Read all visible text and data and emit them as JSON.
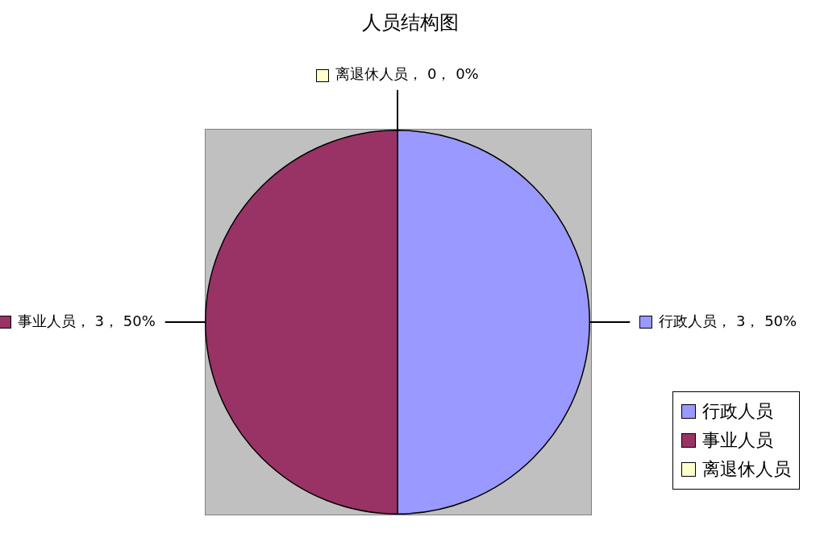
{
  "chart_data": {
    "type": "pie",
    "title": "人员结构图",
    "categories": [
      "行政人员",
      "事业人员",
      "离退休人员"
    ],
    "values": [
      3,
      3,
      0
    ],
    "colors": [
      "#9999ff",
      "#993366",
      "#ffffcc"
    ],
    "value_labels": [
      "行政人员， 3， 50%",
      "事业人员， 3， 50%",
      "离退休人员， 0， 0%"
    ],
    "legend": "bottom right"
  }
}
